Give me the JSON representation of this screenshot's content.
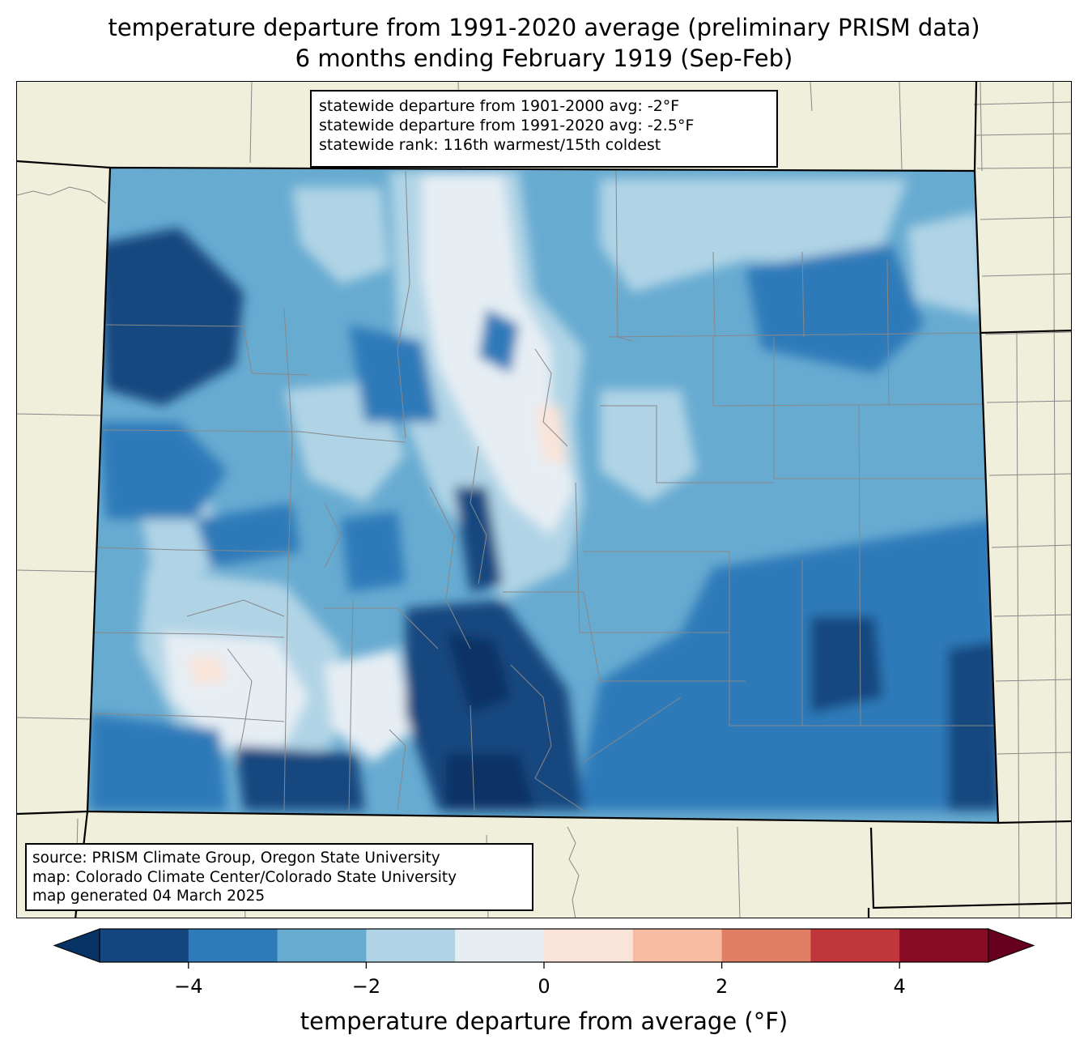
{
  "title": {
    "line1": "temperature departure from 1991-2020 average (preliminary PRISM data)",
    "line2": "6 months ending February 1919 (Sep-Feb)"
  },
  "stats": {
    "line1": "statewide departure from 1901-2000 avg: -2°F",
    "line2": "statewide departure from 1991-2020 avg: -2.5°F",
    "line3": "statewide rank: 116th warmest/15th coldest"
  },
  "source": {
    "line1": "source: PRISM Climate Group, Oregon State University",
    "line2": "map: Colorado Climate Center/Colorado State University",
    "line3": "map generated 04 March 2025"
  },
  "colorbar": {
    "label": "temperature departure from average (°F)",
    "min": -5,
    "max": 5,
    "extend": "both",
    "levels": [
      -5,
      -4,
      -3,
      -2,
      -1,
      0,
      1,
      2,
      3,
      4,
      5
    ],
    "colors": [
      "#14467f",
      "#2f7ab9",
      "#68abd1",
      "#b0d4e6",
      "#e6eef4",
      "#f9e4d9",
      "#f7bba1",
      "#e07f66",
      "#c1363a",
      "#880b25"
    ],
    "under_color": "#073265",
    "over_color": "#67001f",
    "ticks": [
      -4,
      -2,
      0,
      2,
      4
    ],
    "tick_labels": [
      "−4",
      "−2",
      "0",
      "2",
      "4"
    ]
  },
  "map_colors": {
    "land": "#efefdc",
    "state_border": "#000000",
    "county_border": "#888888"
  }
}
